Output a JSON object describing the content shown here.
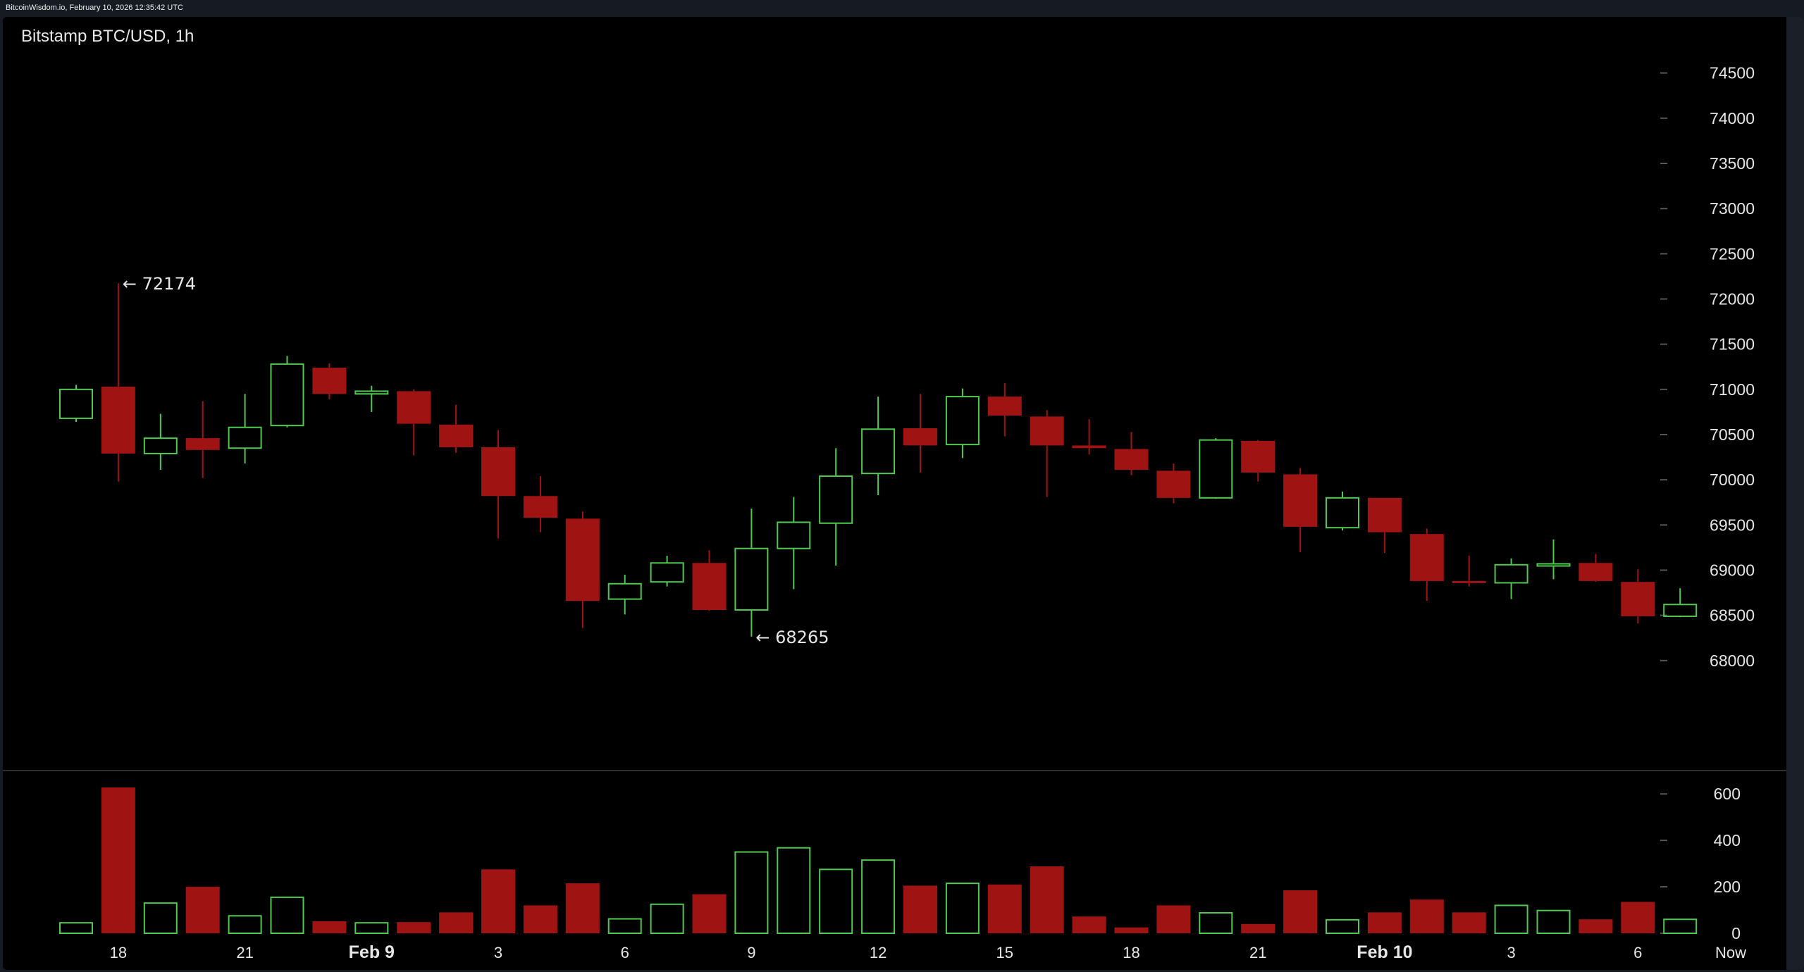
{
  "header": {
    "source_text": "BitcoinWisdom.io, February 10, 2026 12:35:42 UTC"
  },
  "colors": {
    "up": "#4fc94f",
    "down": "#a01313",
    "background": "#000000",
    "tick_text": "#e6e6e6",
    "tick_mark": "#555555"
  },
  "chart_data": {
    "type": "candlestick",
    "title": "Bitstamp BTC/USD, 1h",
    "ylabel": "",
    "xlabel": "",
    "price_axis": {
      "ylim": [
        67500,
        74700
      ],
      "ticks": [
        68000,
        68500,
        69000,
        69500,
        70000,
        70500,
        71000,
        71500,
        72000,
        72500,
        73000,
        73500,
        74000,
        74500
      ]
    },
    "volume_axis": {
      "ylim": [
        0,
        640
      ],
      "ticks": [
        0,
        200,
        400,
        600
      ]
    },
    "x_ticks": [
      {
        "index": 1,
        "label": "18"
      },
      {
        "index": 4,
        "label": "21"
      },
      {
        "index": 7,
        "label": "Feb 9"
      },
      {
        "index": 10,
        "label": "3"
      },
      {
        "index": 13,
        "label": "6"
      },
      {
        "index": 16,
        "label": "9"
      },
      {
        "index": 19,
        "label": "12"
      },
      {
        "index": 22,
        "label": "15"
      },
      {
        "index": 25,
        "label": "18"
      },
      {
        "index": 28,
        "label": "21"
      },
      {
        "index": 31,
        "label": "Feb 10"
      },
      {
        "index": 34,
        "label": "3"
      },
      {
        "index": 37,
        "label": "6"
      },
      {
        "index": 40,
        "label": "Now"
      }
    ],
    "annotations": [
      {
        "label": "← 72174",
        "index": 1,
        "price": 72174
      },
      {
        "label": "← 68265",
        "index": 16,
        "price": 68265
      }
    ],
    "candles": [
      {
        "o": 70680,
        "h": 71050,
        "l": 70640,
        "c": 71000,
        "v": 45
      },
      {
        "o": 71030,
        "h": 72174,
        "l": 69980,
        "c": 70290,
        "v": 628
      },
      {
        "o": 70290,
        "h": 70730,
        "l": 70110,
        "c": 70460,
        "v": 130
      },
      {
        "o": 70460,
        "h": 70870,
        "l": 70020,
        "c": 70330,
        "v": 200
      },
      {
        "o": 70350,
        "h": 70950,
        "l": 70180,
        "c": 70580,
        "v": 75
      },
      {
        "o": 70600,
        "h": 71370,
        "l": 70580,
        "c": 71280,
        "v": 155
      },
      {
        "o": 71240,
        "h": 71290,
        "l": 70890,
        "c": 70950,
        "v": 52
      },
      {
        "o": 70950,
        "h": 71040,
        "l": 70750,
        "c": 70980,
        "v": 45
      },
      {
        "o": 70980,
        "h": 71000,
        "l": 70270,
        "c": 70620,
        "v": 48
      },
      {
        "o": 70610,
        "h": 70830,
        "l": 70300,
        "c": 70360,
        "v": 90
      },
      {
        "o": 70360,
        "h": 70550,
        "l": 69350,
        "c": 69820,
        "v": 275
      },
      {
        "o": 69820,
        "h": 70040,
        "l": 69420,
        "c": 69580,
        "v": 120
      },
      {
        "o": 69570,
        "h": 69650,
        "l": 68360,
        "c": 68660,
        "v": 215
      },
      {
        "o": 68680,
        "h": 68950,
        "l": 68510,
        "c": 68850,
        "v": 62
      },
      {
        "o": 68870,
        "h": 69160,
        "l": 68820,
        "c": 69080,
        "v": 125
      },
      {
        "o": 69080,
        "h": 69220,
        "l": 68550,
        "c": 68560,
        "v": 168
      },
      {
        "o": 68560,
        "h": 69680,
        "l": 68265,
        "c": 69240,
        "v": 350
      },
      {
        "o": 69240,
        "h": 69810,
        "l": 68790,
        "c": 69530,
        "v": 368
      },
      {
        "o": 69520,
        "h": 70350,
        "l": 69050,
        "c": 70040,
        "v": 275
      },
      {
        "o": 70070,
        "h": 70920,
        "l": 69830,
        "c": 70560,
        "v": 315
      },
      {
        "o": 70570,
        "h": 70950,
        "l": 70080,
        "c": 70380,
        "v": 205
      },
      {
        "o": 70390,
        "h": 71010,
        "l": 70240,
        "c": 70920,
        "v": 215
      },
      {
        "o": 70920,
        "h": 71070,
        "l": 70480,
        "c": 70710,
        "v": 210
      },
      {
        "o": 70700,
        "h": 70770,
        "l": 69810,
        "c": 70380,
        "v": 288
      },
      {
        "o": 70380,
        "h": 70670,
        "l": 70280,
        "c": 70350,
        "v": 72
      },
      {
        "o": 70340,
        "h": 70530,
        "l": 70050,
        "c": 70110,
        "v": 25
      },
      {
        "o": 70100,
        "h": 70180,
        "l": 69740,
        "c": 69800,
        "v": 120
      },
      {
        "o": 69800,
        "h": 70460,
        "l": 69790,
        "c": 70440,
        "v": 88
      },
      {
        "o": 70430,
        "h": 70440,
        "l": 69980,
        "c": 70080,
        "v": 40
      },
      {
        "o": 70060,
        "h": 70130,
        "l": 69200,
        "c": 69480,
        "v": 185
      },
      {
        "o": 69470,
        "h": 69870,
        "l": 69440,
        "c": 69800,
        "v": 58
      },
      {
        "o": 69800,
        "h": 69800,
        "l": 69190,
        "c": 69420,
        "v": 90
      },
      {
        "o": 69400,
        "h": 69460,
        "l": 68660,
        "c": 68880,
        "v": 145
      },
      {
        "o": 68880,
        "h": 69160,
        "l": 68820,
        "c": 68860,
        "v": 90
      },
      {
        "o": 68860,
        "h": 69130,
        "l": 68680,
        "c": 69060,
        "v": 120
      },
      {
        "o": 69060,
        "h": 69340,
        "l": 68900,
        "c": 69070,
        "v": 98
      },
      {
        "o": 69080,
        "h": 69180,
        "l": 68870,
        "c": 68880,
        "v": 60
      },
      {
        "o": 68870,
        "h": 69010,
        "l": 68410,
        "c": 68490,
        "v": 135
      },
      {
        "o": 68490,
        "h": 68800,
        "l": 68480,
        "c": 68620,
        "v": 60
      }
    ]
  }
}
